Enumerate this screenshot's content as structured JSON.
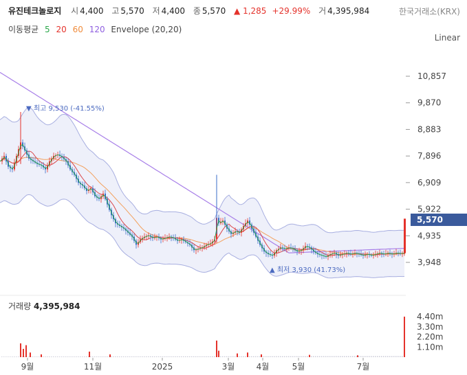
{
  "header": {
    "name": "유진테크놀로지",
    "open_label": "시",
    "open": "4,400",
    "high_label": "고",
    "high": "5,570",
    "low_label": "저",
    "low": "4,400",
    "close_label": "종",
    "close": "5,570",
    "change": "▲ 1,285",
    "change_pct": "+29.99%",
    "volume_label": "거",
    "volume": "4,395,984",
    "exchange": "한국거래소(KRX)"
  },
  "indicators": {
    "label": "이동평균",
    "ma": [
      {
        "period": "5",
        "color": "#2aa84a"
      },
      {
        "period": "20",
        "color": "#e4322b"
      },
      {
        "period": "60",
        "color": "#f08c3c"
      },
      {
        "period": "120",
        "color": "#8f5fe0"
      }
    ],
    "envelope": "Envelope (20,20)"
  },
  "scale_mode": "Linear",
  "current_price": "5,570",
  "chart_data": {
    "type": "candlestick",
    "yticks": [
      "10,857",
      "9,870",
      "8,883",
      "7,896",
      "6,909",
      "5,922",
      "4,935",
      "3,948"
    ],
    "ytick_values": [
      10857,
      9870,
      8883,
      7896,
      6909,
      5922,
      4935,
      3948
    ],
    "xticks": [
      "9월",
      "11월",
      "2025",
      "3월",
      "4월",
      "5월",
      "7월"
    ],
    "max_label": "▼ 최고 9,530 (-41.55%)",
    "min_label": "▲ 최저 3,930 (41.73%)",
    "volume_ticks": [
      "4.40m",
      "3.30m",
      "2.20m",
      "1.10m"
    ],
    "volume_tick_values": [
      4400000,
      3300000,
      2200000,
      1100000
    ],
    "price_path": [
      [
        0,
        7700
      ],
      [
        6,
        7900
      ],
      [
        12,
        7500
      ],
      [
        18,
        7400
      ],
      [
        24,
        7900
      ],
      [
        30,
        8400
      ],
      [
        36,
        8100
      ],
      [
        42,
        7800
      ],
      [
        48,
        7700
      ],
      [
        54,
        7600
      ],
      [
        60,
        7550
      ],
      [
        66,
        7400
      ],
      [
        72,
        7700
      ],
      [
        78,
        7900
      ],
      [
        84,
        7950
      ],
      [
        90,
        7850
      ],
      [
        96,
        7700
      ],
      [
        102,
        7400
      ],
      [
        108,
        7200
      ],
      [
        114,
        6900
      ],
      [
        120,
        6800
      ],
      [
        126,
        6600
      ],
      [
        132,
        6700
      ],
      [
        138,
        6400
      ],
      [
        144,
        6300
      ],
      [
        150,
        6500
      ],
      [
        156,
        6100
      ],
      [
        162,
        5700
      ],
      [
        168,
        5400
      ],
      [
        174,
        5300
      ],
      [
        180,
        5200
      ],
      [
        186,
        5050
      ],
      [
        192,
        4900
      ],
      [
        198,
        4600
      ],
      [
        204,
        4800
      ],
      [
        210,
        4900
      ],
      [
        216,
        4950
      ],
      [
        222,
        4850
      ],
      [
        228,
        4900
      ],
      [
        234,
        4800
      ],
      [
        240,
        4850
      ],
      [
        246,
        4900
      ],
      [
        252,
        4850
      ],
      [
        258,
        4750
      ],
      [
        264,
        4800
      ],
      [
        270,
        4700
      ],
      [
        276,
        4600
      ],
      [
        282,
        4400
      ],
      [
        288,
        4450
      ],
      [
        294,
        4500
      ],
      [
        300,
        4600
      ],
      [
        306,
        4650
      ],
      [
        312,
        4800
      ],
      [
        315,
        5600
      ],
      [
        318,
        5400
      ],
      [
        324,
        5500
      ],
      [
        330,
        5200
      ],
      [
        336,
        5000
      ],
      [
        342,
        5100
      ],
      [
        348,
        5050
      ],
      [
        354,
        5300
      ],
      [
        360,
        5500
      ],
      [
        366,
        5200
      ],
      [
        372,
        4900
      ],
      [
        378,
        4600
      ],
      [
        384,
        4350
      ],
      [
        390,
        4250
      ],
      [
        396,
        4200
      ],
      [
        402,
        4400
      ],
      [
        408,
        4500
      ],
      [
        414,
        4450
      ],
      [
        420,
        4500
      ],
      [
        426,
        4450
      ],
      [
        432,
        4350
      ],
      [
        438,
        4400
      ],
      [
        444,
        4550
      ],
      [
        450,
        4500
      ],
      [
        456,
        4350
      ],
      [
        462,
        4250
      ],
      [
        468,
        4200
      ],
      [
        474,
        4150
      ],
      [
        480,
        4250
      ],
      [
        486,
        4300
      ],
      [
        492,
        4200
      ],
      [
        498,
        4250
      ],
      [
        504,
        4300
      ],
      [
        510,
        4250
      ],
      [
        516,
        4300
      ],
      [
        522,
        4250
      ],
      [
        528,
        4200
      ],
      [
        534,
        4250
      ],
      [
        540,
        4200
      ],
      [
        546,
        4250
      ],
      [
        552,
        4300
      ],
      [
        558,
        4250
      ],
      [
        564,
        4300
      ],
      [
        570,
        4250
      ],
      [
        576,
        4300
      ],
      [
        582,
        4280
      ],
      [
        588,
        4290
      ]
    ]
  }
}
